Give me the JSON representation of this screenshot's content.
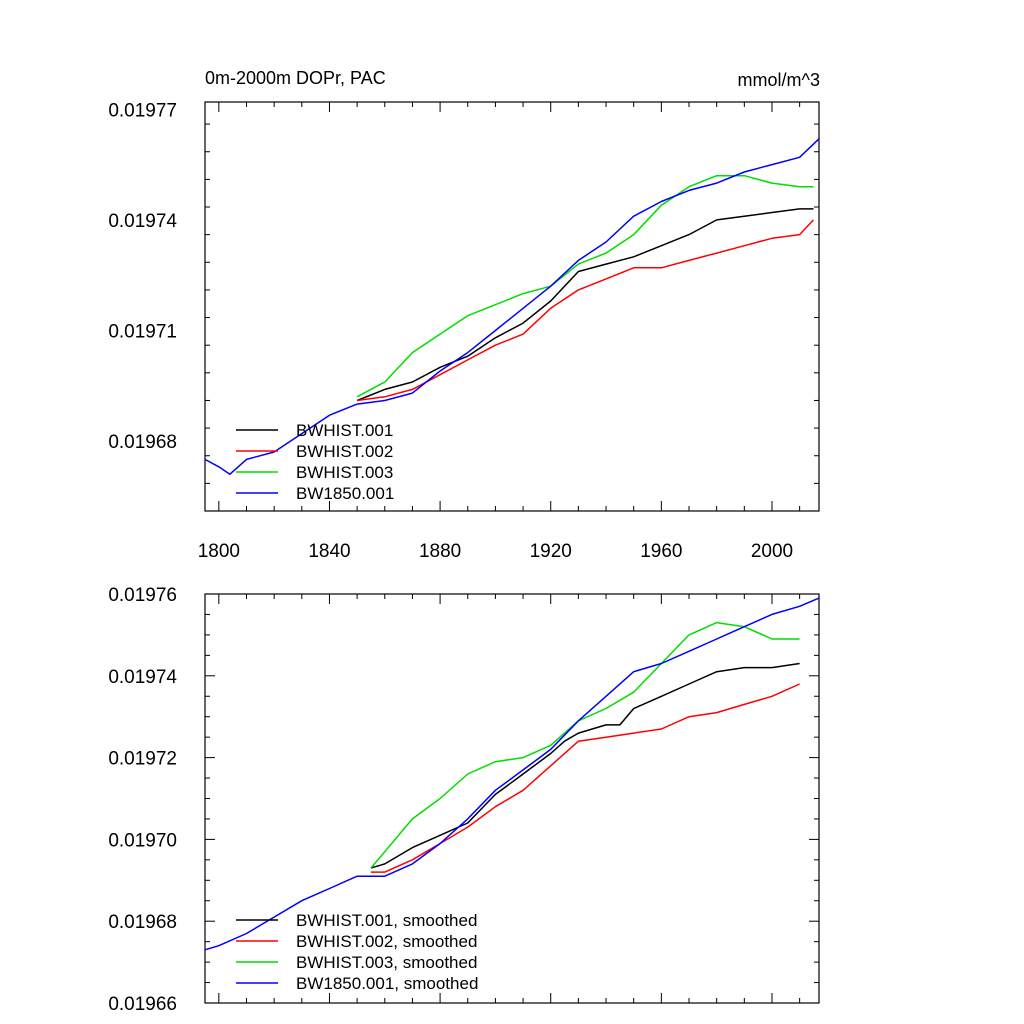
{
  "colors": {
    "BWHIST.001": "#000000",
    "BWHIST.002": "#ff0000",
    "BWHIST.003": "#00dd00",
    "BW1850.001": "#0000ff"
  },
  "chart_data": [
    {
      "type": "line",
      "title": "0m-2000m DOPr, PAC",
      "units": "mmol/m^3",
      "xlabel": "",
      "ylabel": "",
      "xlim": [
        1795,
        2017
      ],
      "ylim": [
        0.019661,
        0.019772
      ],
      "xticks": [
        1800,
        1840,
        1880,
        1920,
        1960,
        2000
      ],
      "xtick_labels": [
        "1800",
        "1840",
        "1880",
        "1920",
        "1960",
        "2000"
      ],
      "yticks": [
        0.01968,
        0.01971,
        0.01974,
        0.01977
      ],
      "ytick_labels": [
        "0.01968",
        "0.01971",
        "0.01974",
        "0.01977"
      ],
      "legend_position": "bottom-left",
      "series": [
        {
          "name": "BWHIST.001",
          "x": [
            1850,
            1860,
            1870,
            1880,
            1890,
            1900,
            1910,
            1920,
            1930,
            1940,
            1950,
            1960,
            1970,
            1980,
            1990,
            2000,
            2010,
            2015
          ],
          "y": [
            0.019691,
            0.019694,
            0.019696,
            0.0197,
            0.019703,
            0.019708,
            0.019712,
            0.019718,
            0.019726,
            0.019728,
            0.01973,
            0.019733,
            0.019736,
            0.01974,
            0.019741,
            0.019742,
            0.019743,
            0.019743
          ]
        },
        {
          "name": "BWHIST.002",
          "x": [
            1850,
            1860,
            1870,
            1880,
            1890,
            1900,
            1910,
            1920,
            1930,
            1940,
            1950,
            1960,
            1970,
            1980,
            1990,
            2000,
            2010,
            2015
          ],
          "y": [
            0.019691,
            0.019692,
            0.019694,
            0.019698,
            0.019702,
            0.019706,
            0.019709,
            0.019716,
            0.019721,
            0.019724,
            0.019727,
            0.019727,
            0.019729,
            0.019731,
            0.019733,
            0.019735,
            0.019736,
            0.01974
          ]
        },
        {
          "name": "BWHIST.003",
          "x": [
            1850,
            1860,
            1870,
            1880,
            1890,
            1900,
            1910,
            1920,
            1930,
            1940,
            1950,
            1960,
            1970,
            1980,
            1990,
            2000,
            2010,
            2015
          ],
          "y": [
            0.019692,
            0.019696,
            0.019704,
            0.019709,
            0.019714,
            0.019717,
            0.01972,
            0.019722,
            0.019728,
            0.019731,
            0.019736,
            0.019744,
            0.019749,
            0.019752,
            0.019752,
            0.01975,
            0.019749,
            0.019749
          ]
        },
        {
          "name": "BW1850.001",
          "x": [
            1795,
            1800,
            1804,
            1810,
            1820,
            1830,
            1840,
            1850,
            1860,
            1870,
            1880,
            1890,
            1900,
            1910,
            1920,
            1930,
            1940,
            1950,
            1960,
            1970,
            1980,
            1990,
            2000,
            2010,
            2017
          ],
          "y": [
            0.019675,
            0.019673,
            0.019671,
            0.019675,
            0.019677,
            0.019682,
            0.019687,
            0.01969,
            0.019691,
            0.019693,
            0.019699,
            0.019704,
            0.01971,
            0.019716,
            0.019722,
            0.019729,
            0.019734,
            0.019741,
            0.019745,
            0.019748,
            0.01975,
            0.019753,
            0.019755,
            0.019757,
            0.019762
          ]
        }
      ]
    },
    {
      "type": "line",
      "title": "",
      "xlabel": "",
      "ylabel": "",
      "xlim": [
        1795,
        2017
      ],
      "ylim": [
        0.01966,
        0.01976
      ],
      "xticks": [
        1800,
        1840,
        1880,
        1920,
        1960,
        2000
      ],
      "xtick_labels": [],
      "yticks": [
        0.01966,
        0.01968,
        0.0197,
        0.01972,
        0.01974,
        0.01976
      ],
      "ytick_labels": [
        "0.01966",
        "0.01968",
        "0.01970",
        "0.01972",
        "0.01974",
        "0.01976"
      ],
      "legend_position": "bottom-left",
      "series": [
        {
          "name": "BWHIST.001, smoothed",
          "x": [
            1855,
            1860,
            1870,
            1880,
            1890,
            1900,
            1910,
            1920,
            1925,
            1930,
            1940,
            1945,
            1950,
            1960,
            1970,
            1980,
            1990,
            2000,
            2010
          ],
          "y": [
            0.019693,
            0.019694,
            0.019698,
            0.019701,
            0.019704,
            0.019711,
            0.019716,
            0.019721,
            0.019724,
            0.019726,
            0.019728,
            0.019728,
            0.019732,
            0.019735,
            0.019738,
            0.019741,
            0.019742,
            0.019742,
            0.019743
          ]
        },
        {
          "name": "BWHIST.002, smoothed",
          "x": [
            1855,
            1860,
            1870,
            1880,
            1890,
            1900,
            1910,
            1920,
            1930,
            1940,
            1950,
            1960,
            1970,
            1980,
            1990,
            2000,
            2010
          ],
          "y": [
            0.019692,
            0.019692,
            0.019695,
            0.019699,
            0.019703,
            0.019708,
            0.019712,
            0.019718,
            0.019724,
            0.019725,
            0.019726,
            0.019727,
            0.01973,
            0.019731,
            0.019733,
            0.019735,
            0.019738
          ]
        },
        {
          "name": "BWHIST.003, smoothed",
          "x": [
            1855,
            1860,
            1870,
            1880,
            1890,
            1900,
            1910,
            1920,
            1930,
            1940,
            1950,
            1960,
            1970,
            1980,
            1990,
            2000,
            2010
          ],
          "y": [
            0.019693,
            0.019697,
            0.019705,
            0.01971,
            0.019716,
            0.019719,
            0.01972,
            0.019723,
            0.019729,
            0.019732,
            0.019736,
            0.019743,
            0.01975,
            0.019753,
            0.019752,
            0.019749,
            0.019749
          ]
        },
        {
          "name": "BW1850.001, smoothed",
          "x": [
            1795,
            1800,
            1810,
            1820,
            1830,
            1840,
            1850,
            1860,
            1870,
            1880,
            1890,
            1900,
            1910,
            1920,
            1930,
            1940,
            1950,
            1960,
            1970,
            1980,
            1990,
            2000,
            2010,
            2017
          ],
          "y": [
            0.019673,
            0.019674,
            0.019677,
            0.019681,
            0.019685,
            0.019688,
            0.019691,
            0.019691,
            0.019694,
            0.019699,
            0.019705,
            0.019712,
            0.019717,
            0.019722,
            0.019729,
            0.019735,
            0.019741,
            0.019743,
            0.019746,
            0.019749,
            0.019752,
            0.019755,
            0.019757,
            0.019759
          ]
        }
      ]
    }
  ]
}
